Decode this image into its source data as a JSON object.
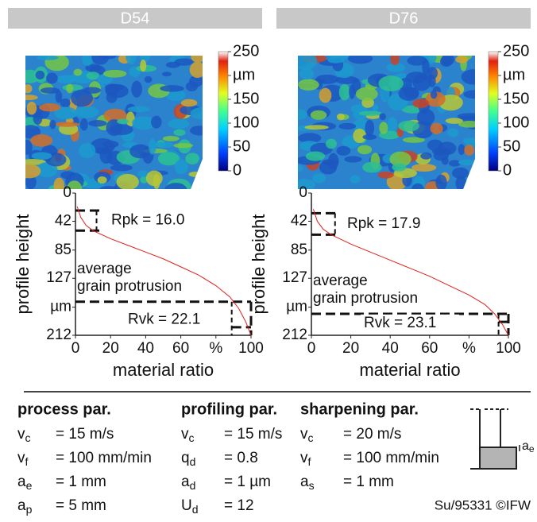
{
  "chart_data": [
    {
      "type": "line",
      "title": "D54",
      "ylabel": "profile height",
      "xlabel": "material ratio",
      "xlim": [
        0,
        100
      ],
      "xticks": [
        0,
        20,
        40,
        60,
        {
          "value": 80,
          "label": "%"
        },
        100
      ],
      "ylim": [
        0,
        212
      ],
      "y_inverted": true,
      "yticks": [
        0,
        42,
        85,
        127,
        {
          "value": 170,
          "label": "µm"
        },
        212
      ],
      "series": [
        {
          "color": "#e0201b",
          "x": [
            1,
            3,
            6,
            10,
            20,
            30,
            40,
            50,
            60,
            70,
            80,
            88,
            93,
            97,
            100
          ],
          "values": [
            20,
            36,
            48,
            56,
            68,
            78,
            88,
            98,
            110,
            122,
            138,
            155,
            172,
            192,
            212
          ]
        }
      ],
      "dash_levels": {
        "rpk": [
          26,
          56
        ],
        "core": 162,
        "rvk": 200,
        "core_x": 89
      },
      "annotations": {
        "rpk": "Rpk = 16.0",
        "rvk": "Rvk = 22.1",
        "protrusion": [
          "average",
          "grain protrusion"
        ]
      },
      "colorbar": {
        "lim": [
          0,
          250
        ],
        "ticks": [
          0,
          50,
          100,
          150,
          {
            "value": 200,
            "label": "µm"
          },
          250
        ]
      }
    },
    {
      "type": "line",
      "title": "D76",
      "ylabel": "profile height",
      "xlabel": "material ratio",
      "xlim": [
        0,
        100
      ],
      "xticks": [
        0,
        20,
        40,
        60,
        {
          "value": 80,
          "label": "%"
        },
        100
      ],
      "ylim": [
        0,
        212
      ],
      "y_inverted": true,
      "yticks": [
        0,
        42,
        85,
        127,
        {
          "value": 170,
          "label": "µm"
        },
        212
      ],
      "series": [
        {
          "color": "#e0201b",
          "x": [
            1,
            3,
            6,
            10,
            20,
            30,
            40,
            50,
            60,
            70,
            80,
            88,
            93,
            97,
            100
          ],
          "values": [
            24,
            42,
            54,
            62,
            76,
            88,
            100,
            112,
            124,
            138,
            152,
            166,
            180,
            196,
            212
          ]
        }
      ],
      "dash_levels": {
        "rpk": [
          30,
          62
        ],
        "core": 180,
        "rvk": 192,
        "core_x": 95
      },
      "annotations": {
        "rpk": "Rpk = 17.9",
        "rvk": "Rvk = 23.1",
        "protrusion": [
          "average",
          "grain protrusion"
        ]
      },
      "colorbar": {
        "lim": [
          0,
          250
        ],
        "ticks": [
          0,
          50,
          100,
          150,
          {
            "value": 200,
            "label": "µm"
          },
          250
        ]
      }
    }
  ],
  "parameters": [
    {
      "title": "process par.",
      "rows": [
        {
          "symbol": "v",
          "sub": "c",
          "value": "= 15 m/s"
        },
        {
          "symbol": "v",
          "sub": "f",
          "value": "= 100 mm/min"
        },
        {
          "symbol": "a",
          "sub": "e",
          "value": "= 1 mm"
        },
        {
          "symbol": "a",
          "sub": "p",
          "value": "= 5 mm"
        }
      ]
    },
    {
      "title": "profiling par.",
      "rows": [
        {
          "symbol": "v",
          "sub": "c",
          "value": "= 15 m/s"
        },
        {
          "symbol": "q",
          "sub": "d",
          "value": "= 0.8"
        },
        {
          "symbol": "a",
          "sub": "d",
          "value": "= 1 µm"
        },
        {
          "symbol": "U",
          "sub": "d",
          "value": "= 12"
        }
      ]
    },
    {
      "title": "sharpening par.",
      "rows": [
        {
          "symbol": "v",
          "sub": "c",
          "value": "= 20 m/s"
        },
        {
          "symbol": "v",
          "sub": "f",
          "value": "= 100 mm/min"
        },
        {
          "symbol": "a",
          "sub": "s",
          "value": "= 1 mm"
        }
      ]
    }
  ],
  "diagram_label": {
    "symbol": "a",
    "sub": "e"
  },
  "footer": "Su/95331 ©IFW"
}
